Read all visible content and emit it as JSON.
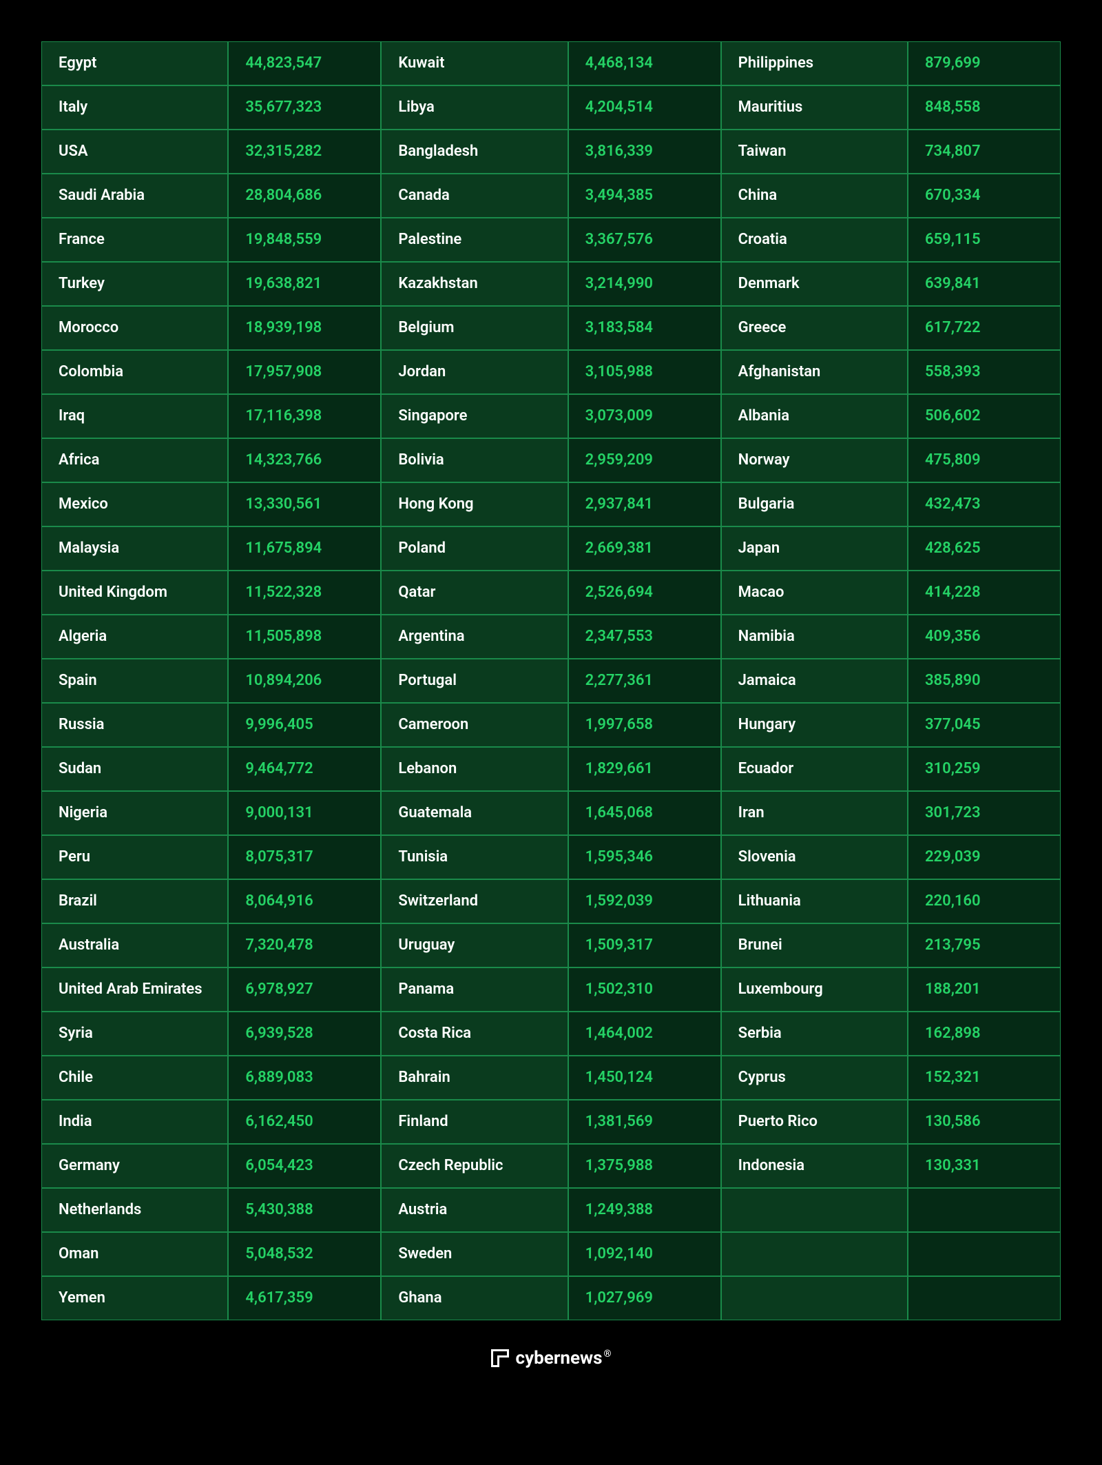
{
  "table": {
    "background_color": "#000000",
    "border_color": "#1a8a4a",
    "country_bg": "#0a3b1e",
    "country_text_color": "#ffffff",
    "value_bg": "#052a15",
    "value_text_color": "#25d366",
    "font_size": 22,
    "font_weight": 600,
    "columns": [
      [
        {
          "country": "Egypt",
          "value": "44,823,547"
        },
        {
          "country": "Italy",
          "value": "35,677,323"
        },
        {
          "country": "USA",
          "value": "32,315,282"
        },
        {
          "country": "Saudi Arabia",
          "value": "28,804,686"
        },
        {
          "country": "France",
          "value": "19,848,559"
        },
        {
          "country": "Turkey",
          "value": "19,638,821"
        },
        {
          "country": "Morocco",
          "value": "18,939,198"
        },
        {
          "country": "Colombia",
          "value": "17,957,908"
        },
        {
          "country": "Iraq",
          "value": "17,116,398"
        },
        {
          "country": "Africa",
          "value": "14,323,766"
        },
        {
          "country": "Mexico",
          "value": "13,330,561"
        },
        {
          "country": "Malaysia",
          "value": "11,675,894"
        },
        {
          "country": "United Kingdom",
          "value": "11,522,328"
        },
        {
          "country": "Algeria",
          "value": "11,505,898"
        },
        {
          "country": "Spain",
          "value": "10,894,206"
        },
        {
          "country": "Russia",
          "value": "9,996,405"
        },
        {
          "country": "Sudan",
          "value": "9,464,772"
        },
        {
          "country": "Nigeria",
          "value": "9,000,131"
        },
        {
          "country": "Peru",
          "value": "8,075,317"
        },
        {
          "country": "Brazil",
          "value": "8,064,916"
        },
        {
          "country": "Australia",
          "value": "7,320,478"
        },
        {
          "country": "United Arab Emirates",
          "value": "6,978,927"
        },
        {
          "country": "Syria",
          "value": "6,939,528"
        },
        {
          "country": "Chile",
          "value": "6,889,083"
        },
        {
          "country": "India",
          "value": "6,162,450"
        },
        {
          "country": "Germany",
          "value": "6,054,423"
        },
        {
          "country": "Netherlands",
          "value": "5,430,388"
        },
        {
          "country": "Oman",
          "value": "5,048,532"
        },
        {
          "country": "Yemen",
          "value": "4,617,359"
        }
      ],
      [
        {
          "country": "Kuwait",
          "value": "4,468,134"
        },
        {
          "country": "Libya",
          "value": "4,204,514"
        },
        {
          "country": "Bangladesh",
          "value": "3,816,339"
        },
        {
          "country": "Canada",
          "value": "3,494,385"
        },
        {
          "country": "Palestine",
          "value": "3,367,576"
        },
        {
          "country": "Kazakhstan",
          "value": "3,214,990"
        },
        {
          "country": "Belgium",
          "value": "3,183,584"
        },
        {
          "country": "Jordan",
          "value": "3,105,988"
        },
        {
          "country": "Singapore",
          "value": "3,073,009"
        },
        {
          "country": "Bolivia",
          "value": "2,959,209"
        },
        {
          "country": "Hong Kong",
          "value": "2,937,841"
        },
        {
          "country": "Poland",
          "value": "2,669,381"
        },
        {
          "country": "Qatar",
          "value": "2,526,694"
        },
        {
          "country": "Argentina",
          "value": "2,347,553"
        },
        {
          "country": "Portugal",
          "value": "2,277,361"
        },
        {
          "country": "Cameroon",
          "value": "1,997,658"
        },
        {
          "country": "Lebanon",
          "value": "1,829,661"
        },
        {
          "country": "Guatemala",
          "value": "1,645,068"
        },
        {
          "country": "Tunisia",
          "value": "1,595,346"
        },
        {
          "country": "Switzerland",
          "value": "1,592,039"
        },
        {
          "country": "Uruguay",
          "value": "1,509,317"
        },
        {
          "country": "Panama",
          "value": "1,502,310"
        },
        {
          "country": "Costa Rica",
          "value": "1,464,002"
        },
        {
          "country": "Bahrain",
          "value": "1,450,124"
        },
        {
          "country": "Finland",
          "value": "1,381,569"
        },
        {
          "country": "Czech Republic",
          "value": "1,375,988"
        },
        {
          "country": "Austria",
          "value": "1,249,388"
        },
        {
          "country": "Sweden",
          "value": "1,092,140"
        },
        {
          "country": "Ghana",
          "value": "1,027,969"
        }
      ],
      [
        {
          "country": "Philippines",
          "value": "879,699"
        },
        {
          "country": "Mauritius",
          "value": "848,558"
        },
        {
          "country": "Taiwan",
          "value": "734,807"
        },
        {
          "country": "China",
          "value": "670,334"
        },
        {
          "country": "Croatia",
          "value": "659,115"
        },
        {
          "country": "Denmark",
          "value": "639,841"
        },
        {
          "country": "Greece",
          "value": "617,722"
        },
        {
          "country": "Afghanistan",
          "value": "558,393"
        },
        {
          "country": "Albania",
          "value": "506,602"
        },
        {
          "country": "Norway",
          "value": "475,809"
        },
        {
          "country": "Bulgaria",
          "value": "432,473"
        },
        {
          "country": "Japan",
          "value": "428,625"
        },
        {
          "country": "Macao",
          "value": "414,228"
        },
        {
          "country": "Namibia",
          "value": "409,356"
        },
        {
          "country": "Jamaica",
          "value": "385,890"
        },
        {
          "country": "Hungary",
          "value": "377,045"
        },
        {
          "country": "Ecuador",
          "value": "310,259"
        },
        {
          "country": "Iran",
          "value": "301,723"
        },
        {
          "country": "Slovenia",
          "value": "229,039"
        },
        {
          "country": "Lithuania",
          "value": "220,160"
        },
        {
          "country": "Brunei",
          "value": "213,795"
        },
        {
          "country": "Luxembourg",
          "value": "188,201"
        },
        {
          "country": "Serbia",
          "value": "162,898"
        },
        {
          "country": "Cyprus",
          "value": "152,321"
        },
        {
          "country": "Puerto Rico",
          "value": "130,586"
        },
        {
          "country": "Indonesia",
          "value": "130,331"
        },
        {
          "country": "",
          "value": ""
        },
        {
          "country": "",
          "value": ""
        },
        {
          "country": "",
          "value": ""
        }
      ]
    ]
  },
  "footer": {
    "brand": "cybernews",
    "registered": "®",
    "text_color": "#ffffff",
    "font_size": 26
  }
}
